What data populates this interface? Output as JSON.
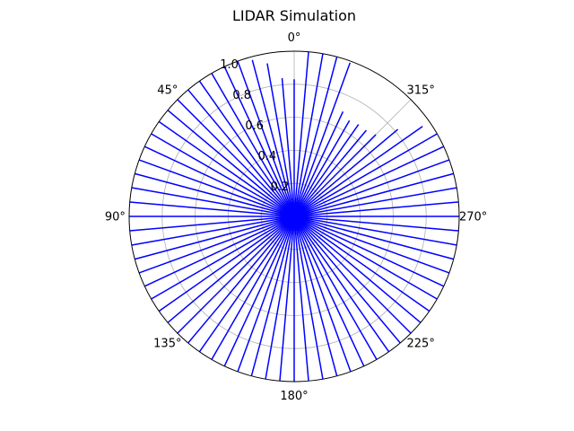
{
  "chart_data": {
    "type": "polar-line",
    "title": "LIDAR Simulation",
    "theta_direction": "counterclockwise",
    "theta_zero": "top",
    "theta_ticks": [
      "0°",
      "45°",
      "90°",
      "135°",
      "180°",
      "225°",
      "270°",
      "315°"
    ],
    "theta_tick_values": [
      0,
      45,
      90,
      135,
      180,
      225,
      270,
      315
    ],
    "r_ticks": [
      "0.2",
      "0.4",
      "0.6",
      "0.8",
      "1.0"
    ],
    "r_tick_values": [
      0.2,
      0.4,
      0.6,
      0.8,
      1.0
    ],
    "rlim": [
      0,
      1.0
    ],
    "r_label_angle": 22.5,
    "grid": true,
    "ray_color": "#0000ff",
    "series": [
      {
        "angles": [
          0,
          5,
          10,
          15,
          20,
          25,
          30,
          35,
          40,
          45,
          50,
          55,
          60,
          65,
          70,
          75,
          80,
          85,
          90,
          95,
          100,
          105,
          110,
          115,
          120,
          125,
          130,
          135,
          140,
          145,
          150,
          155,
          160,
          165,
          170,
          175,
          180,
          185,
          190,
          195,
          200,
          205,
          210,
          215,
          220,
          225,
          230,
          235,
          240,
          245,
          250,
          255,
          260,
          265,
          270,
          275,
          280,
          285,
          290,
          295,
          300,
          305,
          310,
          315,
          320,
          325,
          330,
          335,
          340,
          345,
          350,
          355
        ],
        "ranges": [
          0.83,
          0.84,
          0.94,
          0.98,
          1.0,
          1.0,
          1.0,
          1.0,
          1.0,
          1.0,
          1.0,
          1.0,
          1.0,
          1.0,
          1.0,
          1.0,
          1.0,
          1.0,
          1.0,
          1.0,
          1.0,
          1.0,
          1.0,
          1.0,
          1.0,
          1.0,
          1.0,
          1.0,
          1.0,
          1.0,
          1.0,
          1.0,
          1.0,
          1.0,
          1.0,
          1.0,
          1.0,
          1.0,
          1.0,
          1.0,
          1.0,
          1.0,
          1.0,
          1.0,
          1.0,
          1.0,
          1.0,
          1.0,
          1.0,
          1.0,
          1.0,
          1.0,
          1.0,
          1.0,
          1.0,
          1.0,
          1.0,
          1.0,
          1.0,
          1.0,
          1.0,
          0.95,
          0.82,
          0.7,
          0.68,
          0.68,
          0.67,
          0.7,
          0.99,
          1.0,
          1.0,
          1.0
        ]
      }
    ]
  }
}
